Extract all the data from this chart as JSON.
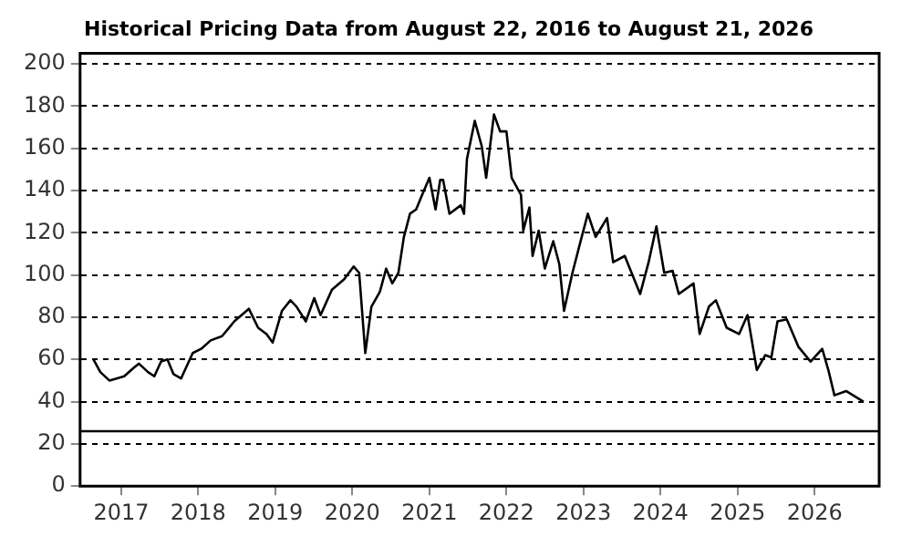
{
  "chart_data": {
    "type": "line",
    "title": "Historical Pricing Data from August 22, 2016 to August 21, 2026",
    "x": [
      "2016-08-22",
      "2016-09-24",
      "2016-11-06",
      "2017-01-15",
      "2017-03-01",
      "2017-03-26",
      "2017-05-08",
      "2017-06-07",
      "2017-07-09",
      "2017-08-08",
      "2017-09-06",
      "2017-10-12",
      "2017-12-06",
      "2018-01-15",
      "2018-03-01",
      "2018-04-24",
      "2018-06-21",
      "2018-08-29",
      "2018-10-12",
      "2018-11-21",
      "2018-12-20",
      "2019-02-02",
      "2019-03-14",
      "2019-04-12",
      "2019-05-26",
      "2019-07-05",
      "2019-08-04",
      "2019-09-27",
      "2019-11-24",
      "2020-01-08",
      "2020-02-03",
      "2020-03-03",
      "2020-04-01",
      "2020-05-11",
      "2020-06-10",
      "2020-07-09",
      "2020-08-07",
      "2020-09-02",
      "2020-10-01",
      "2020-10-30",
      "2020-11-28",
      "2021-01-01",
      "2021-01-30",
      "2021-02-21",
      "2021-03-07",
      "2021-04-06",
      "2021-05-30",
      "2021-06-14",
      "2021-06-28",
      "2021-08-04",
      "2021-09-06",
      "2021-09-27",
      "2021-11-03",
      "2021-12-02",
      "2022-01-01",
      "2022-01-26",
      "2022-03-11",
      "2022-03-22",
      "2022-04-20",
      "2022-05-05",
      "2022-06-03",
      "2022-07-02",
      "2022-08-11",
      "2022-09-09",
      "2022-10-01",
      "2022-11-10",
      "2022-12-16",
      "2023-01-22",
      "2023-02-28",
      "2023-04-23",
      "2023-05-22",
      "2023-07-16",
      "2023-09-27",
      "2023-11-06",
      "2023-12-13",
      "2024-01-19",
      "2024-02-28",
      "2024-03-28",
      "2024-06-06",
      "2024-07-05",
      "2024-08-18",
      "2024-09-20",
      "2024-11-10",
      "2025-01-08",
      "2025-02-17",
      "2025-04-02",
      "2025-05-12",
      "2025-06-10",
      "2025-07-09",
      "2025-08-22",
      "2025-10-16",
      "2025-12-13",
      "2026-02-06",
      "2026-03-07",
      "2026-04-05",
      "2026-05-30",
      "2026-08-21"
    ],
    "series": [
      {
        "color": "#000000",
        "values": [
          60,
          54,
          50,
          52,
          56,
          58,
          54,
          52,
          59,
          60,
          53,
          51,
          63,
          65,
          69,
          71,
          78,
          84,
          75,
          72,
          68,
          83,
          88,
          85,
          78,
          89,
          81,
          93,
          98,
          104,
          101,
          63,
          85,
          92,
          103,
          96,
          101,
          118,
          129,
          131,
          138,
          146,
          131,
          145,
          145,
          129,
          133,
          129,
          155,
          173,
          161,
          146,
          176,
          168,
          168,
          146,
          138,
          121,
          132,
          109,
          121,
          103,
          116,
          105,
          83,
          101,
          115,
          129,
          118,
          127,
          106,
          109,
          91,
          106,
          123,
          101,
          102,
          91,
          96,
          72,
          85,
          88,
          75,
          72,
          81,
          55,
          62,
          61,
          78,
          79,
          66,
          59,
          65,
          55,
          43,
          45,
          40
        ]
      }
    ],
    "xlim": [
      "2016-06-20",
      "2026-11-03"
    ],
    "xticks": [
      {
        "value": "2017-01-01",
        "label": "2017"
      },
      {
        "value": "2018-01-01",
        "label": "2018"
      },
      {
        "value": "2019-01-01",
        "label": "2019"
      },
      {
        "value": "2020-01-01",
        "label": "2020"
      },
      {
        "value": "2021-01-01",
        "label": "2021"
      },
      {
        "value": "2022-01-01",
        "label": "2022"
      },
      {
        "value": "2023-01-01",
        "label": "2023"
      },
      {
        "value": "2024-01-01",
        "label": "2024"
      },
      {
        "value": "2025-01-01",
        "label": "2025"
      },
      {
        "value": "2026-01-01",
        "label": "2026"
      }
    ],
    "ylim": [
      0,
      205
    ],
    "yticks": [
      0,
      20,
      40,
      60,
      80,
      100,
      120,
      140,
      160,
      180,
      200
    ],
    "grid": "y",
    "line_style": "solid",
    "marker": "none",
    "legend": false,
    "ref_lines": [
      {
        "axis": "y",
        "value": 26,
        "color": "#000000",
        "line_style": "solid"
      }
    ]
  }
}
